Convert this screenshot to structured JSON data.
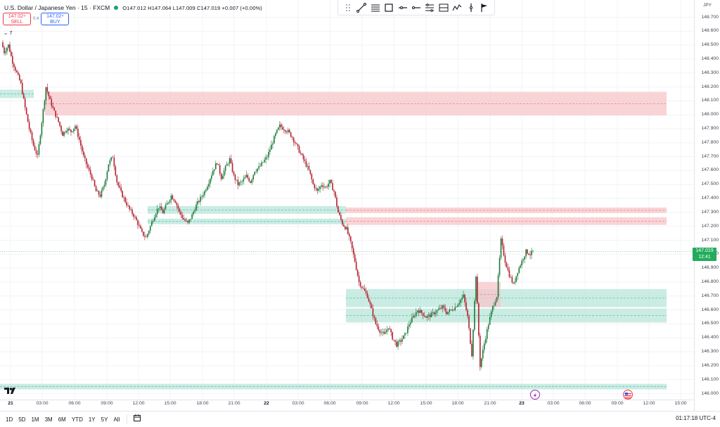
{
  "header": {
    "symbol": "U.S. Dollar / Japanese Yen · 15 · FXCM",
    "ohlc": "O147.012 H147.064 L147.009 C147.019 +0.007 (+0.00%)"
  },
  "trade": {
    "sell_price": "147.02⁹",
    "sell_label": "SELL",
    "spread": "0.4",
    "buy_price": "147.02⁴",
    "buy_label": "BUY"
  },
  "indicator_toggle": "7",
  "toolbar_icons": [
    "grip-icon",
    "trend-line-icon",
    "fib-icon",
    "rectangle-icon",
    "horizontal-ray-icon",
    "horizontal-line-icon",
    "parallel-channel-icon",
    "fib-channel-icon",
    "path-icon",
    "vertical-line-icon",
    "flag-icon"
  ],
  "price_axis": {
    "currency": "JPY",
    "labels": [
      "148.700",
      "148.600",
      "148.500",
      "148.400",
      "148.300",
      "148.200",
      "148.100",
      "148.000",
      "147.900",
      "147.800",
      "147.700",
      "147.600",
      "147.500",
      "147.400",
      "147.300",
      "147.200",
      "147.100",
      "147.000",
      "146.900",
      "146.800",
      "146.700",
      "146.600",
      "146.500",
      "146.400",
      "146.300",
      "146.200",
      "146.100",
      "146.000"
    ],
    "current_price": "147.019",
    "countdown": "12:41"
  },
  "time_axis": {
    "labels": [
      "21",
      "03:00",
      "06:00",
      "09:00",
      "12:00",
      "15:00",
      "18:00",
      "21:00",
      "22",
      "03:00",
      "06:00",
      "09:00",
      "12:00",
      "15:00",
      "18:00",
      "21:00",
      "23",
      "03:00",
      "06:00",
      "09:00",
      "12:00",
      "15:00"
    ]
  },
  "ranges": [
    "1D",
    "5D",
    "1M",
    "3M",
    "6M",
    "YTD",
    "1Y",
    "5Y",
    "All"
  ],
  "clock": "01:17:18 UTC-4",
  "colors": {
    "up": "#26a69a",
    "down": "#ef5350",
    "supply_zone": "#f7c5c9",
    "demand_zone": "#b8e6d9",
    "price_tag": "#22ab5c"
  },
  "chart_data": {
    "type": "candlestick",
    "symbol": "USDJPY",
    "timeframe": "15",
    "ylim": [
      145.99,
      148.76
    ],
    "zones": [
      {
        "kind": "demand",
        "low": 148.12,
        "high": 148.18,
        "extent": "left"
      },
      {
        "kind": "supply",
        "low": 147.995,
        "high": 148.165,
        "extent": "wide"
      },
      {
        "kind": "demand",
        "low": 147.29,
        "high": 147.345,
        "extent": "mid"
      },
      {
        "kind": "demand",
        "low": 147.215,
        "high": 147.255,
        "extent": "mid"
      },
      {
        "kind": "supply",
        "low": 147.295,
        "high": 147.335,
        "extent": "right"
      },
      {
        "kind": "supply",
        "low": 147.21,
        "high": 147.265,
        "extent": "right"
      },
      {
        "kind": "demand",
        "low": 146.62,
        "high": 146.75,
        "extent": "right"
      },
      {
        "kind": "demand",
        "low": 146.51,
        "high": 146.61,
        "extent": "right"
      },
      {
        "kind": "supply",
        "low": 146.62,
        "high": 146.8,
        "extent": "small"
      },
      {
        "kind": "demand",
        "low": 146.03,
        "high": 146.07,
        "extent": "full"
      }
    ],
    "price_path": [
      [
        0,
        148.52
      ],
      [
        2,
        148.45
      ],
      [
        5,
        148.5
      ],
      [
        8,
        148.38
      ],
      [
        11,
        148.3
      ],
      [
        14,
        148.22
      ],
      [
        17,
        148.05
      ],
      [
        20,
        147.9
      ],
      [
        23,
        147.78
      ],
      [
        26,
        147.7
      ],
      [
        29,
        147.95
      ],
      [
        32,
        148.2
      ],
      [
        35,
        148.1
      ],
      [
        38,
        148.02
      ],
      [
        41,
        147.95
      ],
      [
        44,
        147.86
      ],
      [
        47,
        147.9
      ],
      [
        50,
        147.88
      ],
      [
        53,
        147.92
      ],
      [
        56,
        147.82
      ],
      [
        59,
        147.7
      ],
      [
        62,
        147.62
      ],
      [
        65,
        147.55
      ],
      [
        68,
        147.45
      ],
      [
        71,
        147.42
      ],
      [
        74,
        147.5
      ],
      [
        77,
        147.65
      ],
      [
        80,
        147.7
      ],
      [
        83,
        147.52
      ],
      [
        86,
        147.44
      ],
      [
        89,
        147.38
      ],
      [
        92,
        147.32
      ],
      [
        95,
        147.28
      ],
      [
        98,
        147.22
      ],
      [
        101,
        147.15
      ],
      [
        104,
        147.12
      ],
      [
        107,
        147.2
      ],
      [
        110,
        147.28
      ],
      [
        113,
        147.34
      ],
      [
        116,
        147.3
      ],
      [
        119,
        147.36
      ],
      [
        122,
        147.42
      ],
      [
        125,
        147.38
      ],
      [
        128,
        147.3
      ],
      [
        131,
        147.25
      ],
      [
        134,
        147.22
      ],
      [
        137,
        147.28
      ],
      [
        140,
        147.35
      ],
      [
        143,
        147.4
      ],
      [
        146,
        147.45
      ],
      [
        149,
        147.52
      ],
      [
        152,
        147.6
      ],
      [
        155,
        147.66
      ],
      [
        158,
        147.55
      ],
      [
        161,
        147.62
      ],
      [
        164,
        147.68
      ],
      [
        167,
        147.56
      ],
      [
        170,
        147.5
      ],
      [
        173,
        147.52
      ],
      [
        176,
        147.56
      ],
      [
        179,
        147.52
      ],
      [
        182,
        147.6
      ],
      [
        185,
        147.62
      ],
      [
        188,
        147.66
      ],
      [
        191,
        147.7
      ],
      [
        194,
        147.78
      ],
      [
        197,
        147.86
      ],
      [
        200,
        147.92
      ],
      [
        203,
        147.9
      ],
      [
        206,
        147.88
      ],
      [
        209,
        147.84
      ],
      [
        212,
        147.78
      ],
      [
        215,
        147.72
      ],
      [
        218,
        147.66
      ],
      [
        221,
        147.6
      ],
      [
        224,
        147.5
      ],
      [
        227,
        147.45
      ],
      [
        230,
        147.5
      ],
      [
        233,
        147.48
      ],
      [
        236,
        147.52
      ],
      [
        239,
        147.45
      ],
      [
        242,
        147.3
      ],
      [
        245,
        147.22
      ],
      [
        248,
        147.18
      ],
      [
        251,
        147.08
      ],
      [
        254,
        146.95
      ],
      [
        257,
        146.8
      ],
      [
        260,
        146.75
      ],
      [
        263,
        146.7
      ],
      [
        266,
        146.6
      ],
      [
        269,
        146.5
      ],
      [
        272,
        146.45
      ],
      [
        275,
        146.42
      ],
      [
        278,
        146.48
      ],
      [
        281,
        146.4
      ],
      [
        284,
        146.35
      ],
      [
        287,
        146.38
      ],
      [
        290,
        146.42
      ],
      [
        293,
        146.5
      ],
      [
        296,
        146.55
      ],
      [
        299,
        146.6
      ],
      [
        302,
        146.58
      ],
      [
        305,
        146.55
      ],
      [
        308,
        146.56
      ],
      [
        311,
        146.58
      ],
      [
        314,
        146.6
      ],
      [
        317,
        146.62
      ],
      [
        320,
        146.58
      ],
      [
        323,
        146.6
      ],
      [
        326,
        146.62
      ],
      [
        329,
        146.66
      ],
      [
        332,
        146.7
      ],
      [
        335,
        146.55
      ],
      [
        338,
        146.28
      ],
      [
        341,
        146.85
      ],
      [
        344,
        146.2
      ],
      [
        347,
        146.36
      ],
      [
        350,
        146.5
      ],
      [
        353,
        146.62
      ],
      [
        356,
        146.7
      ],
      [
        359,
        147.1
      ],
      [
        362,
        146.95
      ],
      [
        365,
        146.85
      ],
      [
        368,
        146.78
      ],
      [
        371,
        146.88
      ],
      [
        374,
        146.95
      ],
      [
        377,
        147.02
      ],
      [
        380,
        147.0
      ],
      [
        382,
        147.02
      ]
    ]
  }
}
